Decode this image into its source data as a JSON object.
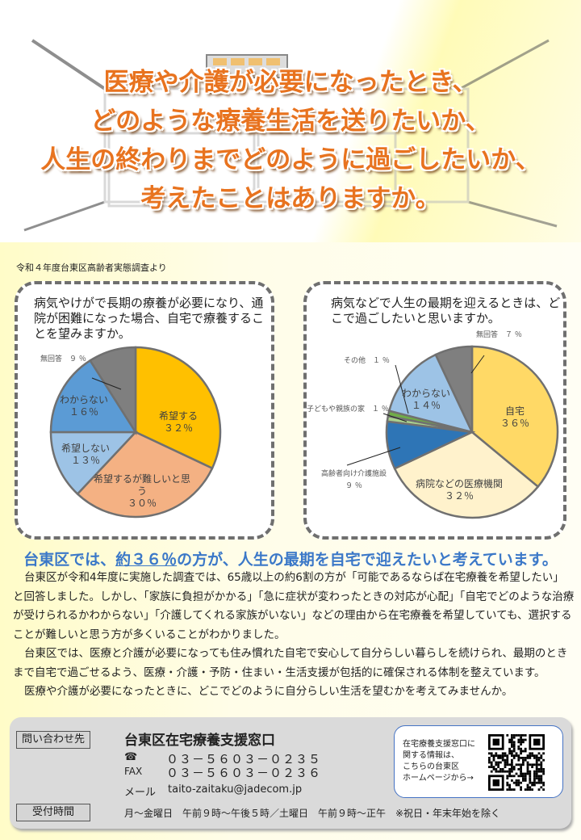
{
  "title": {
    "lines": [
      "医療や介護が必要になったとき、",
      "どのような療養生活を送りたいか、",
      "人生の終わりまでどのように過ごしたいか、",
      "考えたことはありますか。"
    ]
  },
  "source": "令和４年度台東区高齢者実態調査より",
  "chart_data": [
    {
      "type": "pie",
      "title": "病気やけがで長期の療養が必要になり、通院が困難になった場合、自宅で療養することを望みますか。",
      "slices": [
        {
          "label": "希望する",
          "value": 32,
          "display": "３２％",
          "color": "#FFC000"
        },
        {
          "label": "希望するが難しいと思う",
          "value": 30,
          "display": "３０％",
          "color": "#F4B183"
        },
        {
          "label": "希望しない",
          "value": 13,
          "display": "１３％",
          "color": "#9DC3E6"
        },
        {
          "label": "わからない",
          "value": 16,
          "display": "１６％",
          "color": "#5B9BD5"
        },
        {
          "label": "無回答",
          "value": 9,
          "display": "９ ％",
          "color": "#7F7F7F"
        }
      ]
    },
    {
      "type": "pie",
      "title": "病気などで人生の最期を迎えるときは、どこで過ごしたいと思いますか。",
      "slices": [
        {
          "label": "自宅",
          "value": 36,
          "display": "３６％",
          "color": "#FFD966"
        },
        {
          "label": "病院などの医療機関",
          "value": 32,
          "display": "３２％",
          "color": "#FFF2CC"
        },
        {
          "label": "高齢者向け介護施設",
          "value": 9,
          "display": "９ ％",
          "color": "#2E75B6"
        },
        {
          "label": "子どもや親族の家",
          "value": 1,
          "display": "１ ％",
          "color": "#A9D18E"
        },
        {
          "label": "その他",
          "value": 1,
          "display": "１ ％",
          "color": "#70AD47"
        },
        {
          "label": "わからない",
          "value": 14,
          "display": "１４％",
          "color": "#9DC3E6"
        },
        {
          "label": "無回答",
          "value": 7,
          "display": "７ ％",
          "color": "#7F7F7F"
        }
      ]
    }
  ],
  "headline": {
    "pre": "台東区では、",
    "emph": "約３６％",
    "post": "の方が、人生の最期を自宅で迎えたいと考えています。"
  },
  "body": [
    "台東区が令和4年度に実施した調査では、65歳以上の約6割の方が「可能であるならば在宅療養を希望したい」と回答しました。しかし、「家族に負担がかかる」「急に症状が変わったときの対応が心配」「自宅でどのような治療が受けられるかわからない」「介護してくれる家族がいない」などの理由から在宅療養を希望していても、選択することが難しいと思う方が多くいることがわかりました。",
    "台東区では、医療と介護が必要になっても住み慣れた自宅で安心して自分らしい暮らしを続けられ、最期のときまで自宅で過ごせるよう、医療・介護・予防・住まい・生活支援が包括的に確保される体制を整えています。",
    "医療や介護が必要になったときに、どこでどのように自分らしい生活を望むかを考えてみませんか。"
  ],
  "footer": {
    "contact_label": "問い合わせ先",
    "office": "台東区在宅療養支援窓口",
    "tel_icon": "phone-icon",
    "tel": "０３－５６０３－０２３５",
    "fax_label": "FAX",
    "fax": "０３－５６０３－０２３６",
    "mail_label": "メール",
    "mail": "taito-zaitaku@jadecom.jp",
    "hours_label": "受付時間",
    "hours": "月～金曜日　午前９時～午後５時／土曜日　午前９時～正午　※祝日・年末年始を除く",
    "qr_text": [
      "在宅療養支援窓口に",
      "関する情報は、",
      "こちらの台東区",
      "ホームページから→"
    ]
  }
}
